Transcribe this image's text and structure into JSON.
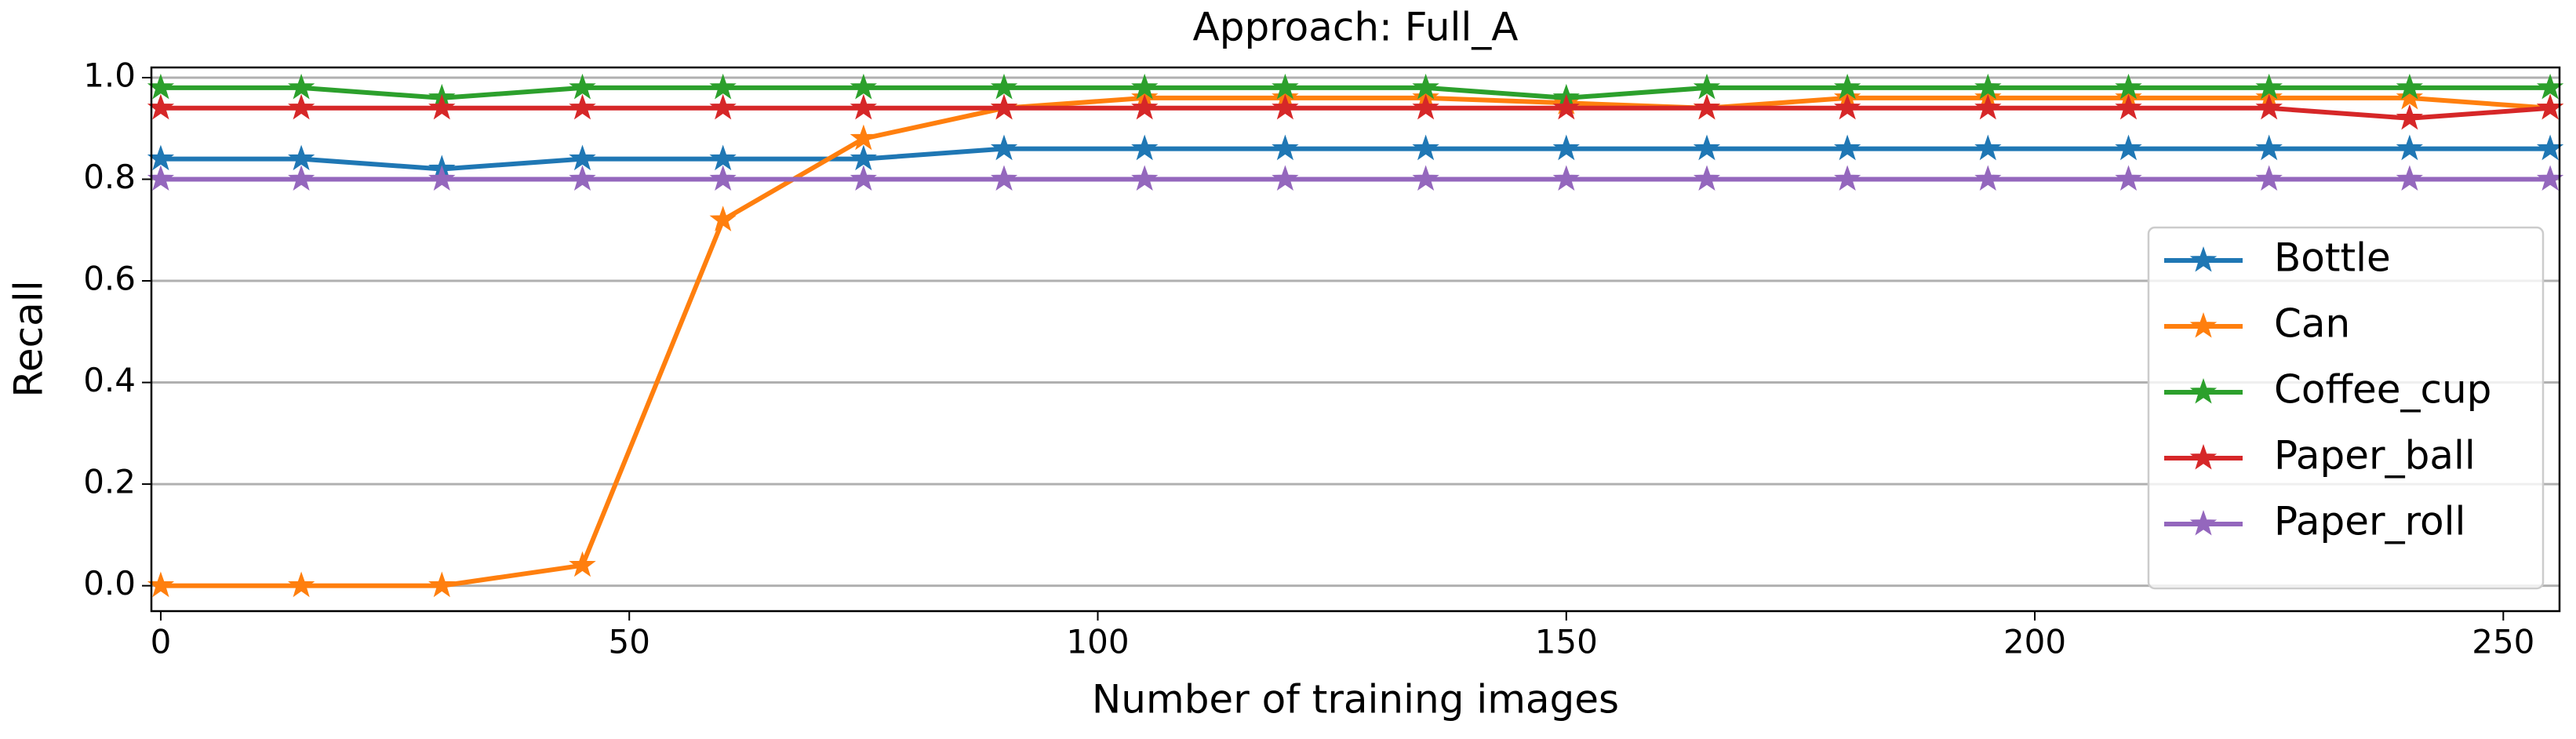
{
  "chart_data": {
    "type": "line",
    "title": "Approach: Full_A",
    "x_label": "Number of training images",
    "y_label": "Recall",
    "x": [
      0,
      15,
      30,
      45,
      60,
      75,
      90,
      105,
      120,
      135,
      150,
      165,
      180,
      195,
      210,
      225,
      240,
      255
    ],
    "series": [
      {
        "name": "Bottle",
        "color": "#1f77b4",
        "values": [
          0.84,
          0.84,
          0.82,
          0.84,
          0.84,
          0.84,
          0.86,
          0.86,
          0.86,
          0.86,
          0.86,
          0.86,
          0.86,
          0.86,
          0.86,
          0.86,
          0.86,
          0.86
        ]
      },
      {
        "name": "Can",
        "color": "#ff7f0e",
        "values": [
          0,
          0,
          0,
          0.04,
          0.72,
          0.88,
          0.94,
          0.96,
          0.96,
          0.96,
          0.95,
          0.94,
          0.96,
          0.96,
          0.96,
          0.96,
          0.96,
          0.94
        ]
      },
      {
        "name": "Coffee_cup",
        "color": "#2ca02c",
        "values": [
          0.98,
          0.98,
          0.96,
          0.98,
          0.98,
          0.98,
          0.98,
          0.98,
          0.98,
          0.98,
          0.96,
          0.98,
          0.98,
          0.98,
          0.98,
          0.98,
          0.98,
          0.98
        ]
      },
      {
        "name": "Paper_ball",
        "color": "#d62728",
        "values": [
          0.94,
          0.94,
          0.94,
          0.94,
          0.94,
          0.94,
          0.94,
          0.94,
          0.94,
          0.94,
          0.94,
          0.94,
          0.94,
          0.94,
          0.94,
          0.94,
          0.92,
          0.94
        ]
      },
      {
        "name": "Paper_roll",
        "color": "#9467bd",
        "values": [
          0.8,
          0.8,
          0.8,
          0.8,
          0.8,
          0.8,
          0.8,
          0.8,
          0.8,
          0.8,
          0.8,
          0.8,
          0.8,
          0.8,
          0.8,
          0.8,
          0.8,
          0.8
        ]
      }
    ],
    "xlim": [
      -1,
      256
    ],
    "ylim": [
      -0.05,
      1.02
    ],
    "xticks": [
      0,
      50,
      100,
      150,
      200,
      250
    ],
    "yticks": [
      {
        "value": 0,
        "label": "0.0"
      },
      {
        "value": 0.2,
        "label": "0.2"
      },
      {
        "value": 0.4,
        "label": "0.4"
      },
      {
        "value": 0.6,
        "label": "0.6"
      },
      {
        "value": 0.8,
        "label": "0.8"
      },
      {
        "value": 1,
        "label": "1.0"
      }
    ],
    "grid": "y",
    "legend": "lower right",
    "marker": "star"
  }
}
